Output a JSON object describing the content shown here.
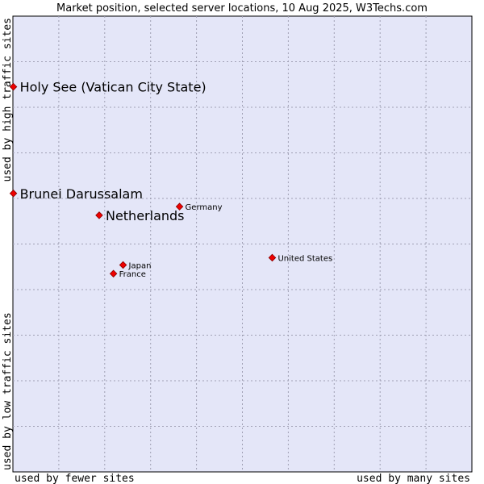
{
  "chart_data": {
    "type": "scatter",
    "title": "Market position, selected server locations, 10 Aug 2025, W3Techs.com",
    "xlabel_left": "used by fewer sites",
    "xlabel_right": "used by many sites",
    "ylabel_bottom": "used by low traffic sites",
    "ylabel_top": "used by high traffic sites",
    "xlim": [
      0,
      100
    ],
    "ylim": [
      0,
      100
    ],
    "grid": true,
    "colors": {
      "plot_bg": "#e4e6f8",
      "grid": "#a0a0b4",
      "point": "#ee0000",
      "point_edge": "#880000"
    },
    "points": [
      {
        "label": "Holy See (Vatican City State)",
        "x": 0.1,
        "y": 84.5,
        "size": "large"
      },
      {
        "label": "Brunei Darussalam",
        "x": 0.1,
        "y": 61.1,
        "size": "large"
      },
      {
        "label": "Netherlands",
        "x": 18.8,
        "y": 56.3,
        "size": "large"
      },
      {
        "label": "Germany",
        "x": 36.3,
        "y": 58.2,
        "size": "small"
      },
      {
        "label": "United States",
        "x": 56.5,
        "y": 47.0,
        "size": "small"
      },
      {
        "label": "Japan",
        "x": 24.0,
        "y": 45.4,
        "size": "small"
      },
      {
        "label": "France",
        "x": 21.9,
        "y": 43.5,
        "size": "small"
      }
    ]
  }
}
